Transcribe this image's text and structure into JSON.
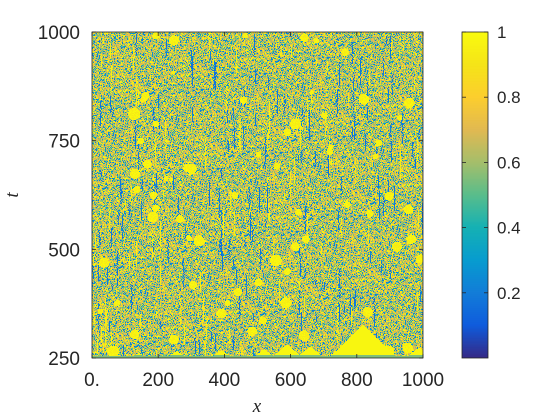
{
  "chart_data": {
    "type": "heatmap",
    "title": "",
    "xlabel": "x",
    "ylabel": "t",
    "xlim": [
      0,
      1000
    ],
    "ylim": [
      250,
      1000
    ],
    "x_ticks": [
      0,
      200,
      400,
      600,
      800,
      1000
    ],
    "x_tick_labels": [
      "0.",
      "200",
      "400",
      "600",
      "800",
      "1000"
    ],
    "y_ticks": [
      250,
      500,
      750,
      1000
    ],
    "y_tick_labels": [
      "250",
      "500",
      "750",
      "1000"
    ],
    "colorbar": {
      "colormap": "parula",
      "range": [
        0,
        1
      ],
      "ticks": [
        0.2,
        0.4,
        0.6,
        0.8,
        1
      ],
      "tick_labels": [
        "0.2",
        "0.4",
        "0.6",
        "0.8",
        "1"
      ],
      "position": "right"
    },
    "field_description": "spatiotemporal pattern u(x,t) with values in [0,1]; noisy turbulent structure dominated by mid values (~0.55-0.7), frequent saturated yellow blobs near 1 and dark blue streaks near 0.1-0.2 elongated in t",
    "initial_front_peaks": [
      {
        "x": 140,
        "height_t": 5
      },
      {
        "x": 255,
        "height_t": 10
      },
      {
        "x": 390,
        "height_t": 12
      },
      {
        "x": 520,
        "height_t": 14
      },
      {
        "x": 590,
        "height_t": 25
      },
      {
        "x": 660,
        "height_t": 20
      },
      {
        "x": 820,
        "height_t": 70
      },
      {
        "x": 990,
        "height_t": 18
      }
    ],
    "colors": {
      "low": "#352a87",
      "mid_low": "#1079d8",
      "mid": "#5bbd73",
      "mid_high": "#d5bb59",
      "high": "#f9fb0e"
    }
  }
}
